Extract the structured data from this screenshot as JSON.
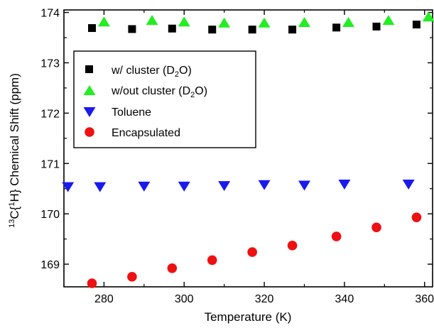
{
  "chart_data": {
    "type": "scatter",
    "xlabel": "Temperature (K)",
    "ylabel": {
      "p1": "13",
      "p2": "C{",
      "p3": "1",
      "p4": "H} Chemical Shift (ppm)"
    },
    "xlim": [
      270,
      362
    ],
    "ylim": [
      168.55,
      174.05
    ],
    "xticks": [
      280,
      300,
      320,
      340,
      360
    ],
    "yticks": [
      169,
      170,
      171,
      172,
      173,
      174
    ],
    "grid": false,
    "legend_position": "top-left",
    "series": [
      {
        "name": "w/ cluster (D2O)",
        "name_parts": {
          "pre": "w/ cluster (D",
          "sub": "2",
          "post": "O)"
        },
        "marker": "square",
        "color": "#000000",
        "x": [
          277,
          287,
          297,
          307,
          317,
          327,
          338,
          348,
          358
        ],
        "y": [
          173.69,
          173.67,
          173.68,
          173.66,
          173.66,
          173.66,
          173.7,
          173.72,
          173.76
        ]
      },
      {
        "name": "w/out cluster (D2O)",
        "name_parts": {
          "pre": "w/out cluster (D",
          "sub": "2",
          "post": "O)"
        },
        "marker": "triangle-up",
        "color": "#22ee22",
        "x": [
          280,
          292,
          300,
          310,
          320,
          330,
          341,
          351,
          361
        ],
        "y": [
          173.82,
          173.85,
          173.82,
          173.8,
          173.8,
          173.81,
          173.81,
          173.85,
          173.92
        ]
      },
      {
        "name": "Toluene",
        "marker": "triangle-down",
        "color": "#1a1aee",
        "x": [
          271,
          279,
          290,
          300,
          310,
          320,
          330,
          340,
          356
        ],
        "y": [
          170.53,
          170.53,
          170.54,
          170.54,
          170.55,
          170.57,
          170.56,
          170.58,
          170.58
        ]
      },
      {
        "name": "Encapsulated",
        "marker": "circle",
        "color": "#ee1111",
        "x": [
          277,
          287,
          297,
          307,
          317,
          327,
          338,
          348,
          358
        ],
        "y": [
          168.62,
          168.75,
          168.92,
          169.08,
          169.24,
          169.37,
          169.55,
          169.73,
          169.93
        ]
      }
    ]
  }
}
